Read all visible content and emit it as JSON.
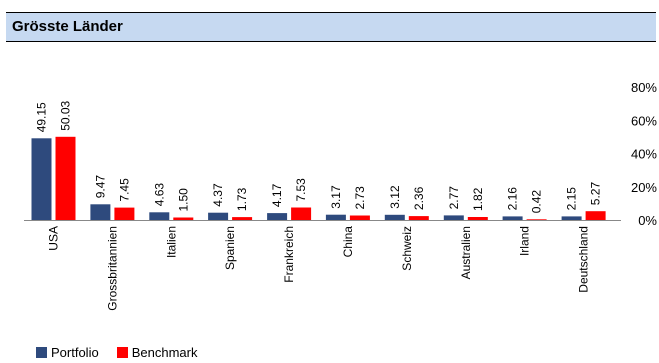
{
  "header": {
    "title": "Grösste Länder"
  },
  "colors": {
    "portfolio": "#2e4a7d",
    "benchmark": "#ff0000",
    "header_bg": "#c6d9f1"
  },
  "legend": {
    "portfolio_label": "Portfolio",
    "benchmark_label": "Benchmark"
  },
  "chart_data": {
    "type": "bar",
    "categories": [
      "USA",
      "Grossbritannien",
      "Italien",
      "Spanien",
      "Frankreich",
      "China",
      "Schweiz",
      "Australien",
      "Irland",
      "Deutschland"
    ],
    "series": [
      {
        "name": "Portfolio",
        "values": [
          49.15,
          9.47,
          4.63,
          4.37,
          4.17,
          3.17,
          3.12,
          2.77,
          2.16,
          2.15
        ]
      },
      {
        "name": "Benchmark",
        "values": [
          50.03,
          7.45,
          1.5,
          1.73,
          7.53,
          2.73,
          2.36,
          1.82,
          0.42,
          5.27
        ]
      }
    ],
    "ylim": [
      0,
      80
    ],
    "yticks": [
      "0%",
      "20%",
      "40%",
      "60%",
      "80%"
    ],
    "value_labels": {
      "Portfolio": [
        "49.15",
        "9.47",
        "4.63",
        "4.37",
        "4.17",
        "3.17",
        "3.12",
        "2.77",
        "2.16",
        "2.15"
      ],
      "Benchmark": [
        "50.03",
        "7.45",
        "1.50",
        "1.73",
        "7.53",
        "2.73",
        "2.36",
        "1.82",
        "0.42",
        "5.27"
      ]
    },
    "y_axis_position": "right",
    "legend_position": "bottom-left",
    "grid": false
  }
}
